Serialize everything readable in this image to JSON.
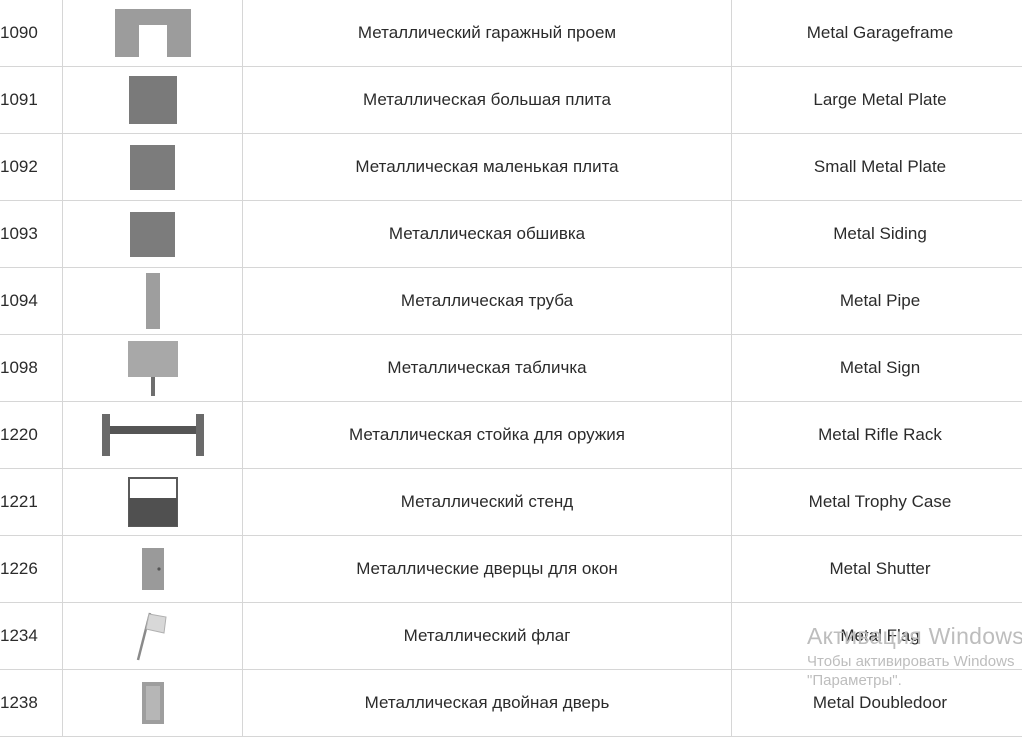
{
  "rows": [
    {
      "id": "1090",
      "ru": "Металлический гаражный проем",
      "en": "Metal Garageframe",
      "icon": "garage-frame-icon"
    },
    {
      "id": "1091",
      "ru": "Металлическая большая плита",
      "en": "Large Metal Plate",
      "icon": "large-plate-icon"
    },
    {
      "id": "1092",
      "ru": "Металлическая маленькая плита",
      "en": "Small Metal Plate",
      "icon": "small-plate-icon"
    },
    {
      "id": "1093",
      "ru": "Металлическая обшивка",
      "en": "Metal Siding",
      "icon": "siding-icon"
    },
    {
      "id": "1094",
      "ru": "Металлическая труба",
      "en": "Metal Pipe",
      "icon": "pipe-icon"
    },
    {
      "id": "1098",
      "ru": "Металлическая табличка",
      "en": "Metal Sign",
      "icon": "sign-icon"
    },
    {
      "id": "1220",
      "ru": "Металлическая стойка для оружия",
      "en": "Metal Rifle Rack",
      "icon": "rifle-rack-icon"
    },
    {
      "id": "1221",
      "ru": "Металлический стенд",
      "en": "Metal Trophy Case",
      "icon": "trophy-case-icon"
    },
    {
      "id": "1226",
      "ru": "Металлические дверцы для окон",
      "en": "Metal Shutter",
      "icon": "shutter-icon"
    },
    {
      "id": "1234",
      "ru": "Металлический флаг",
      "en": "Metal Flag",
      "icon": "flag-icon"
    },
    {
      "id": "1238",
      "ru": "Металлическая двойная дверь",
      "en": "Metal Doubledoor",
      "icon": "double-door-icon"
    }
  ],
  "watermark": {
    "title": "Активация Windows",
    "line1": "Чтобы активировать Windows",
    "line2": "\"Параметры\"."
  }
}
